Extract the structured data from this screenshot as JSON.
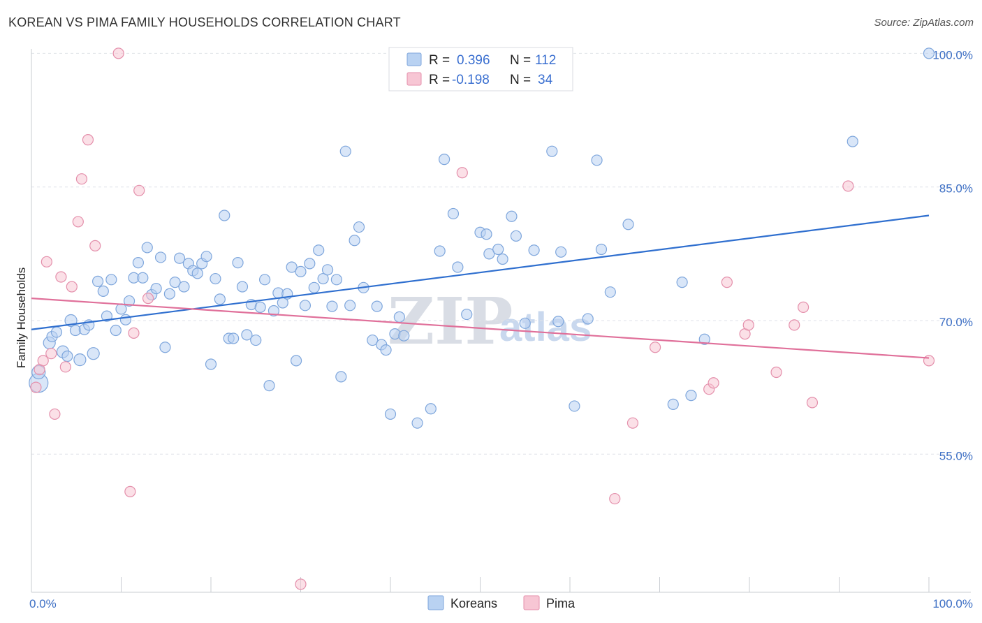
{
  "header": {
    "title": "KOREAN VS PIMA FAMILY HOUSEHOLDS CORRELATION CHART",
    "source": "Source: ZipAtlas.com"
  },
  "watermark": {
    "part1": "ZIP",
    "part2": "atlas"
  },
  "colors": {
    "blue_fill": "#b9d2f2",
    "blue_stroke": "#7ea6dc",
    "blue_line": "#2f6fcf",
    "pink_fill": "#f7c6d4",
    "pink_stroke": "#e48fab",
    "pink_line": "#e0709a",
    "tick_text": "#3d6fc4",
    "grid": "#dfe2e8"
  },
  "legend": {
    "rows": [
      {
        "r_label": "R =",
        "r_value": "0.396",
        "n_label": "N =",
        "n_value": "112",
        "swatch": "blue"
      },
      {
        "r_label": "R =",
        "r_value": "-0.198",
        "n_label": "N =",
        "n_value": "34",
        "swatch": "pink"
      }
    ]
  },
  "bottom_legend": [
    {
      "label": "Koreans",
      "swatch": "blue"
    },
    {
      "label": "Pima",
      "swatch": "pink"
    }
  ],
  "chart_data": {
    "type": "scatter",
    "title": "KOREAN VS PIMA FAMILY HOUSEHOLDS CORRELATION CHART",
    "xlabel": "",
    "ylabel": "Family Households",
    "xlim": [
      0,
      100
    ],
    "ylim": [
      39.5,
      100.5
    ],
    "x_tick_labels": [
      {
        "value": 0,
        "label": "0.0%"
      },
      {
        "value": 100,
        "label": "100.0%"
      }
    ],
    "y_tick_labels": [
      {
        "value": 55,
        "label": "55.0%"
      },
      {
        "value": 70,
        "label": "70.0%"
      },
      {
        "value": 85,
        "label": "85.0%"
      },
      {
        "value": 100,
        "label": "100.0%"
      }
    ],
    "y_gridlines": [
      55,
      70,
      85,
      100
    ],
    "x_minor_ticks": [
      10,
      20,
      30,
      40,
      50,
      60,
      70,
      80,
      90
    ],
    "series": [
      {
        "name": "Koreans",
        "color": "blue",
        "trend": {
          "x": [
            0,
            100
          ],
          "y": [
            69.0,
            81.8
          ]
        },
        "points": [
          [
            0.8,
            63.0,
            26
          ],
          [
            0.8,
            64.2,
            18
          ],
          [
            2.0,
            67.5,
            16
          ],
          [
            2.3,
            68.2,
            14
          ],
          [
            2.8,
            68.7,
            14
          ],
          [
            3.5,
            66.5,
            16
          ],
          [
            4.0,
            66.0,
            14
          ],
          [
            4.4,
            70.0,
            16
          ],
          [
            4.9,
            68.9,
            14
          ],
          [
            5.4,
            65.6,
            16
          ],
          [
            5.9,
            69.0,
            14
          ],
          [
            6.4,
            69.5,
            14
          ],
          [
            6.9,
            66.3,
            16
          ],
          [
            7.4,
            74.4,
            14
          ],
          [
            8.0,
            73.3,
            14
          ],
          [
            8.4,
            70.5,
            14
          ],
          [
            8.9,
            74.6,
            14
          ],
          [
            9.4,
            68.9,
            14
          ],
          [
            10.0,
            71.3,
            14
          ],
          [
            10.5,
            70.1,
            14
          ],
          [
            10.9,
            72.2,
            14
          ],
          [
            11.4,
            74.8,
            14
          ],
          [
            11.9,
            76.5,
            14
          ],
          [
            12.4,
            74.8,
            14
          ],
          [
            12.9,
            78.2,
            14
          ],
          [
            13.4,
            72.9,
            14
          ],
          [
            13.9,
            73.6,
            14
          ],
          [
            14.4,
            77.1,
            14
          ],
          [
            14.9,
            67.0,
            14
          ],
          [
            15.4,
            73.0,
            14
          ],
          [
            16.0,
            74.3,
            14
          ],
          [
            16.5,
            77.0,
            14
          ],
          [
            17.0,
            73.8,
            14
          ],
          [
            17.5,
            76.4,
            14
          ],
          [
            18.0,
            75.6,
            14
          ],
          [
            18.5,
            75.3,
            14
          ],
          [
            19.0,
            76.4,
            14
          ],
          [
            19.5,
            77.2,
            14
          ],
          [
            20.0,
            65.1,
            14
          ],
          [
            20.5,
            74.7,
            14
          ],
          [
            21.0,
            72.4,
            14
          ],
          [
            21.5,
            81.8,
            14
          ],
          [
            22.0,
            68.0,
            14
          ],
          [
            22.5,
            68.0,
            14
          ],
          [
            23.0,
            76.5,
            14
          ],
          [
            23.5,
            73.8,
            14
          ],
          [
            24.0,
            68.4,
            14
          ],
          [
            24.5,
            71.8,
            14
          ],
          [
            25.0,
            67.8,
            14
          ],
          [
            25.5,
            71.5,
            14
          ],
          [
            26.0,
            74.6,
            14
          ],
          [
            26.5,
            62.7,
            14
          ],
          [
            27.0,
            71.1,
            14
          ],
          [
            27.5,
            73.1,
            14
          ],
          [
            28.0,
            72.0,
            14
          ],
          [
            28.5,
            73.0,
            14
          ],
          [
            29.0,
            76.0,
            14
          ],
          [
            29.5,
            65.5,
            14
          ],
          [
            30.0,
            75.5,
            14
          ],
          [
            30.5,
            71.7,
            14
          ],
          [
            31.0,
            76.4,
            14
          ],
          [
            31.5,
            73.7,
            14
          ],
          [
            32.0,
            77.9,
            14
          ],
          [
            32.5,
            74.7,
            14
          ],
          [
            33.0,
            75.7,
            14
          ],
          [
            33.5,
            71.6,
            14
          ],
          [
            34.0,
            74.6,
            14
          ],
          [
            34.5,
            63.7,
            14
          ],
          [
            35.0,
            89.0,
            14
          ],
          [
            35.5,
            71.7,
            14
          ],
          [
            36.0,
            79.0,
            14
          ],
          [
            36.5,
            80.5,
            14
          ],
          [
            37.0,
            73.7,
            14
          ],
          [
            38.0,
            67.8,
            14
          ],
          [
            38.5,
            71.6,
            14
          ],
          [
            39.0,
            67.3,
            14
          ],
          [
            39.5,
            66.7,
            14
          ],
          [
            40.0,
            59.5,
            14
          ],
          [
            40.5,
            68.5,
            14
          ],
          [
            41.0,
            70.4,
            14
          ],
          [
            41.5,
            68.3,
            14
          ],
          [
            43.0,
            58.5,
            14
          ],
          [
            44.5,
            60.1,
            14
          ],
          [
            45.5,
            77.8,
            14
          ],
          [
            46.0,
            88.1,
            14
          ],
          [
            47.0,
            82.0,
            14
          ],
          [
            47.5,
            76.0,
            14
          ],
          [
            48.5,
            70.7,
            14
          ],
          [
            50.0,
            79.9,
            14
          ],
          [
            50.7,
            79.7,
            14
          ],
          [
            51.0,
            77.5,
            14
          ],
          [
            52.0,
            78.0,
            14
          ],
          [
            52.5,
            76.9,
            14
          ],
          [
            53.5,
            81.7,
            14
          ],
          [
            54.0,
            79.5,
            14
          ],
          [
            55.0,
            69.7,
            14
          ],
          [
            56.0,
            77.9,
            14
          ],
          [
            58.0,
            89.0,
            14
          ],
          [
            58.7,
            69.9,
            14
          ],
          [
            59.0,
            77.7,
            14
          ],
          [
            60.5,
            60.4,
            14
          ],
          [
            62.0,
            70.2,
            14
          ],
          [
            63.0,
            88.0,
            14
          ],
          [
            63.5,
            78.0,
            14
          ],
          [
            64.5,
            73.2,
            14
          ],
          [
            66.5,
            80.8,
            14
          ],
          [
            71.5,
            60.6,
            14
          ],
          [
            72.5,
            74.3,
            14
          ],
          [
            73.5,
            61.6,
            14
          ],
          [
            75.0,
            67.9,
            14
          ],
          [
            91.5,
            90.1,
            14
          ],
          [
            100.0,
            100.0,
            14
          ]
        ]
      },
      {
        "name": "Pima",
        "color": "pink",
        "trend": {
          "x": [
            0,
            100
          ],
          "y": [
            72.5,
            65.8
          ]
        },
        "points": [
          [
            0.5,
            62.5,
            14
          ],
          [
            0.9,
            64.5,
            14
          ],
          [
            1.3,
            65.5,
            14
          ],
          [
            1.7,
            76.6,
            14
          ],
          [
            2.2,
            66.3,
            14
          ],
          [
            2.6,
            59.5,
            14
          ],
          [
            3.3,
            74.9,
            14
          ],
          [
            3.8,
            64.8,
            14
          ],
          [
            4.5,
            73.8,
            14
          ],
          [
            5.2,
            81.1,
            14
          ],
          [
            5.6,
            85.9,
            14
          ],
          [
            6.3,
            90.3,
            14
          ],
          [
            7.1,
            78.4,
            14
          ],
          [
            9.7,
            100.0,
            14
          ],
          [
            11.0,
            50.8,
            14
          ],
          [
            11.4,
            68.6,
            14
          ],
          [
            12.0,
            84.6,
            14
          ],
          [
            13.0,
            72.5,
            14
          ],
          [
            30.0,
            40.4,
            14
          ],
          [
            48.0,
            86.6,
            14
          ],
          [
            65.0,
            50.0,
            14
          ],
          [
            67.0,
            58.5,
            14
          ],
          [
            69.5,
            67.0,
            14
          ],
          [
            75.5,
            62.3,
            14
          ],
          [
            76.0,
            63.0,
            14
          ],
          [
            77.5,
            74.3,
            14
          ],
          [
            79.5,
            68.5,
            14
          ],
          [
            79.9,
            69.5,
            14
          ],
          [
            83.0,
            64.2,
            14
          ],
          [
            85.0,
            69.5,
            14
          ],
          [
            86.0,
            71.5,
            14
          ],
          [
            87.0,
            60.8,
            14
          ],
          [
            91.0,
            85.1,
            14
          ],
          [
            100.0,
            65.5,
            14
          ]
        ]
      }
    ]
  }
}
